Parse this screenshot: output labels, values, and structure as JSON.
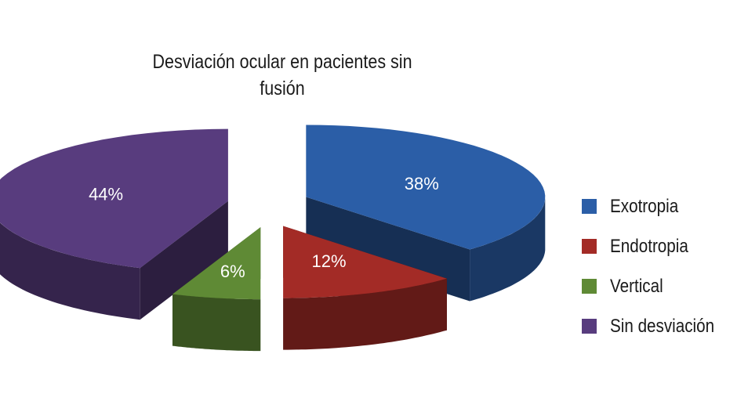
{
  "chart_data": {
    "type": "pie",
    "title": "Desviación ocular en pacientes sin fusión",
    "slices": [
      {
        "name": "Exotropia",
        "value": 38,
        "label": "38%",
        "color": "#2b5ea7"
      },
      {
        "name": "Endotropia",
        "value": 12,
        "label": "12%",
        "color": "#a32b26"
      },
      {
        "name": "Vertical",
        "value": 6,
        "label": "6%",
        "color": "#5f8a35"
      },
      {
        "name": "Sin desviación",
        "value": 44,
        "label": "44%",
        "color": "#583c7e"
      }
    ],
    "legend_position": "right",
    "style": "3d-exploded"
  }
}
